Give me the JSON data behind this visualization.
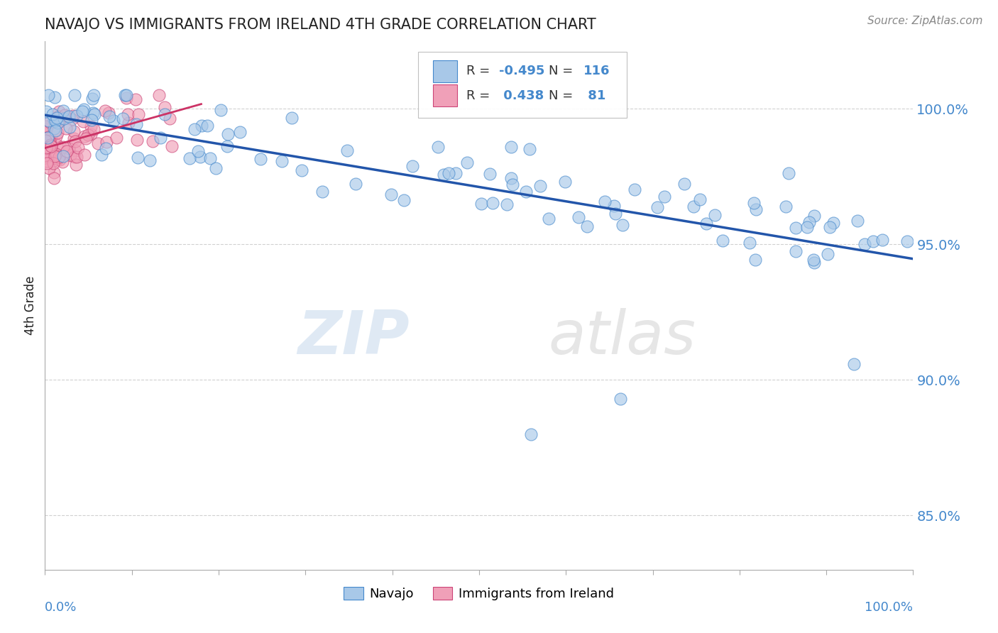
{
  "title": "NAVAJO VS IMMIGRANTS FROM IRELAND 4TH GRADE CORRELATION CHART",
  "source": "Source: ZipAtlas.com",
  "ylabel": "4th Grade",
  "watermark_zip": "ZIP",
  "watermark_atlas": "atlas",
  "legend": {
    "blue_R": -0.495,
    "blue_N": 116,
    "pink_R": 0.438,
    "pink_N": 81
  },
  "blue_color": "#a8c8e8",
  "blue_edge_color": "#4488cc",
  "pink_color": "#f0a0b8",
  "pink_edge_color": "#cc4477",
  "trendline_color": "#2255aa",
  "pink_trendline_color": "#cc3366",
  "ytick_color": "#4488cc",
  "grid_color": "#cccccc",
  "title_color": "#222222",
  "source_color": "#888888",
  "ylabel_color": "#222222",
  "xlim": [
    0.0,
    1.0
  ],
  "ylim": [
    0.83,
    1.025
  ],
  "yticks": [
    0.85,
    0.9,
    0.95,
    1.0
  ],
  "ytick_labels": [
    "85.0%",
    "90.0%",
    "95.0%",
    "100.0%"
  ]
}
